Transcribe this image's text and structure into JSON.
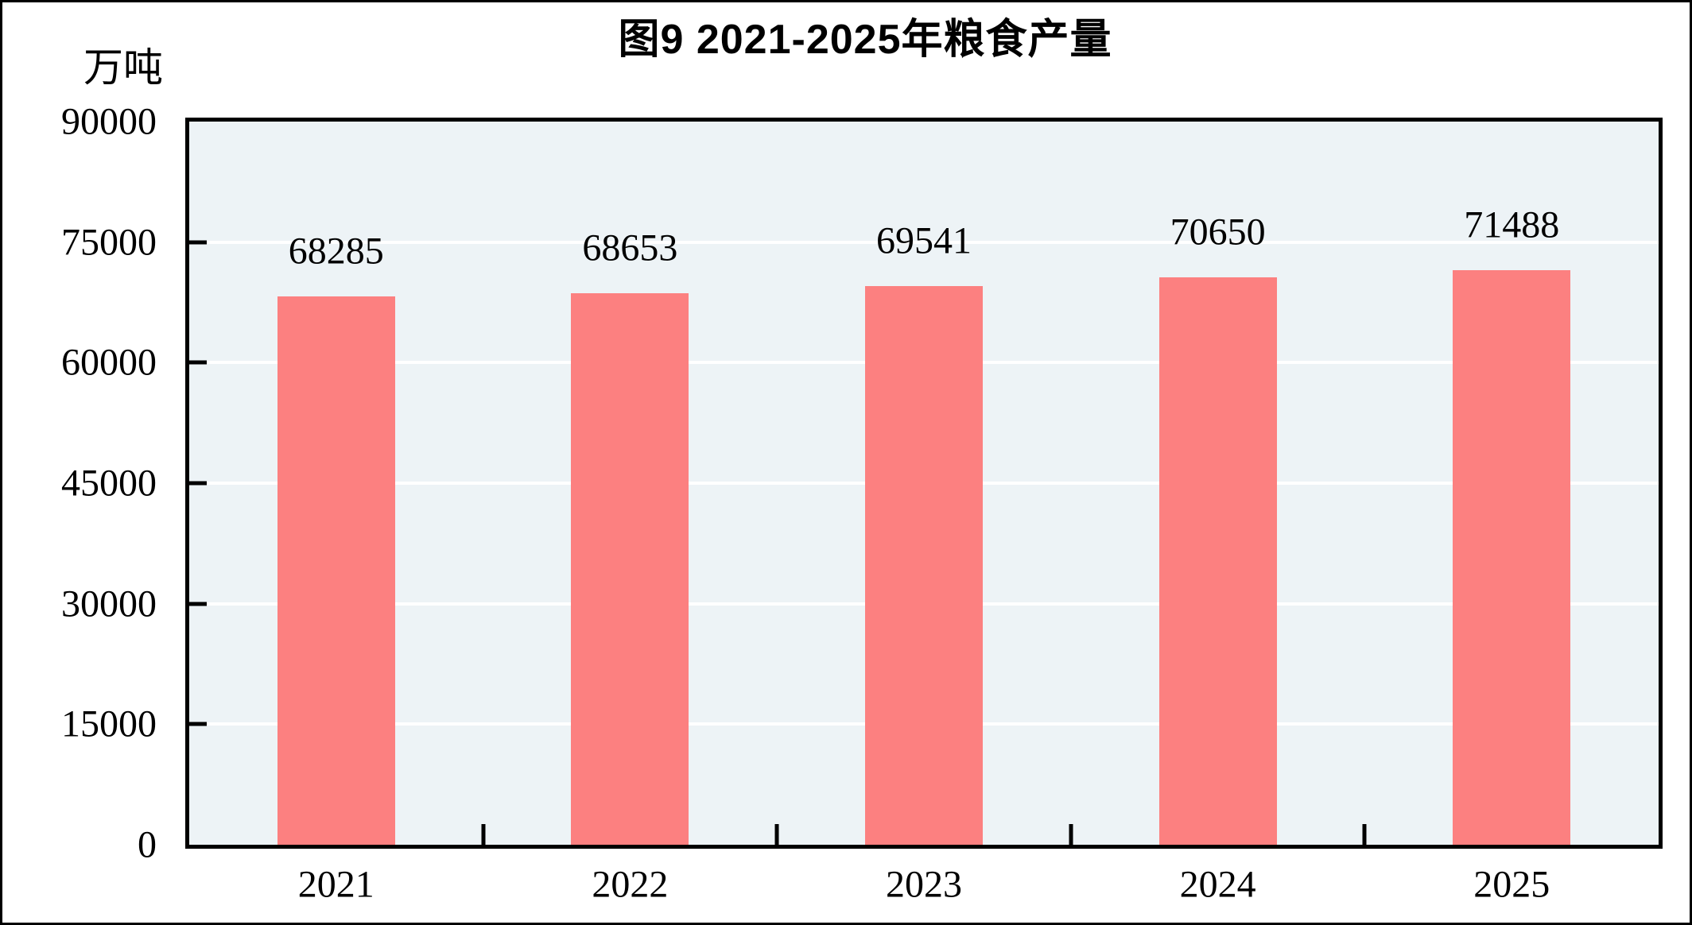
{
  "figure": {
    "title": "图9  2021-2025年粮食产量",
    "unit_label": "万吨"
  },
  "chart_data": {
    "type": "bar",
    "title": "图9  2021-2025年粮食产量",
    "xlabel": "",
    "ylabel": "万吨",
    "categories": [
      "2021",
      "2022",
      "2023",
      "2024",
      "2025"
    ],
    "values": [
      68285,
      68653,
      69541,
      70650,
      71488
    ],
    "value_labels": [
      "68285",
      "68653",
      "69541",
      "70650",
      "71488"
    ],
    "ylim": [
      0,
      90000
    ],
    "yticks": [
      0,
      15000,
      30000,
      45000,
      60000,
      75000,
      90000
    ],
    "ytick_labels": [
      "0",
      "15000",
      "30000",
      "45000",
      "60000",
      "75000",
      "90000"
    ],
    "grid": true,
    "legend_position": "none",
    "colors": {
      "bar": "#FC8080",
      "plot_background": "#EDF3F6",
      "gridline": "#FFFFFF",
      "frame": "#000000",
      "text": "#000000"
    }
  }
}
